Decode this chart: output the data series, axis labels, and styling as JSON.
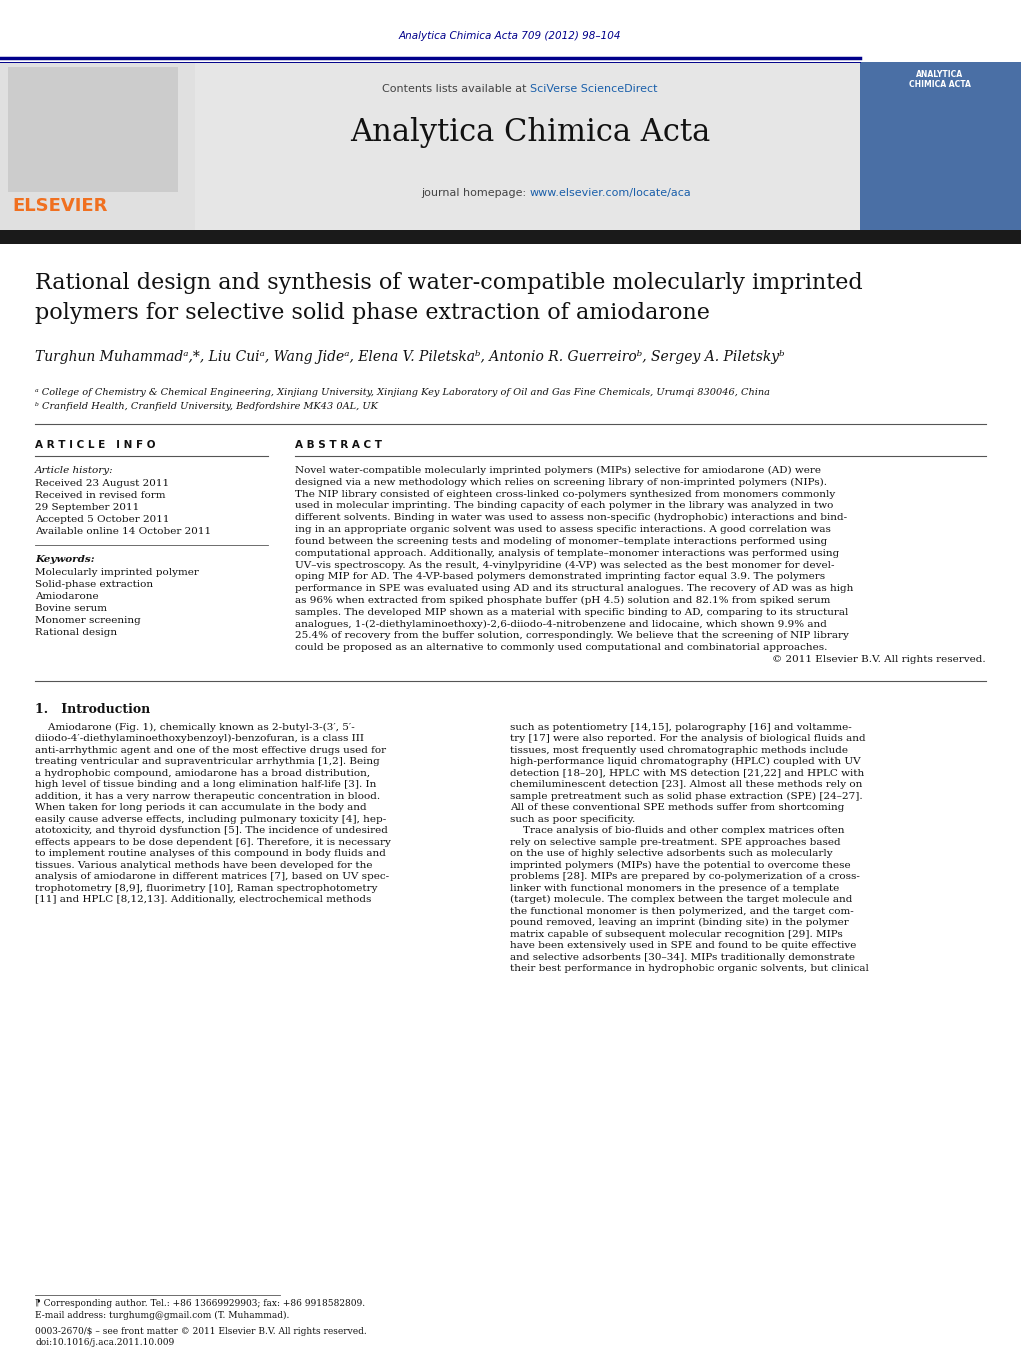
{
  "page_bg": "#ffffff",
  "journal_citation": "Analytica Chimica Acta 709 (2012) 98–104",
  "journal_citation_color": "#00008B",
  "journal_name": "Analytica Chimica Acta",
  "link_color": "#1a5faa",
  "elsevier_color": "#f07020",
  "dark_bar_color": "#1a1a1a",
  "header_bg": "#e8e8e8",
  "header_right_bg": "#4a6fa5",
  "article_title_line1": "Rational design and synthesis of water-compatible molecularly imprinted",
  "article_title_line2": "polymers for selective solid phase extraction of amiodarone",
  "authors_line": "Turghun Muhammadᵃ,*, Liu Cuiᵃ, Wang Jideᵃ, Elena V. Piletskaᵇ, Antonio R. Guerreiroᵇ, Sergey A. Piletskyᵇ",
  "affil_a": "ᵃ College of Chemistry & Chemical Engineering, Xinjiang University, Xinjiang Key Laboratory of Oil and Gas Fine Chemicals, Urumqi 830046, China",
  "affil_b": "ᵇ Cranfield Health, Cranfield University, Bedfordshire MK43 0AL, UK",
  "section_info": "A R T I C L E   I N F O",
  "section_abstract": "A B S T R A C T",
  "hist_label": "Article history:",
  "hist_items": [
    "Received 23 August 2011",
    "Received in revised form",
    "29 September 2011",
    "Accepted 5 October 2011",
    "Available online 14 October 2011"
  ],
  "kw_label": "Keywords:",
  "keywords": [
    "Molecularly imprinted polymer",
    "Solid-phase extraction",
    "Amiodarone",
    "Bovine serum",
    "Monomer screening",
    "Rational design"
  ],
  "abstract_lines": [
    "Novel water-compatible molecularly imprinted polymers (MIPs) selective for amiodarone (AD) were",
    "designed via a new methodology which relies on screening library of non-imprinted polymers (NIPs).",
    "The NIP library consisted of eighteen cross-linked co-polymers synthesized from monomers commonly",
    "used in molecular imprinting. The binding capacity of each polymer in the library was analyzed in two",
    "different solvents. Binding in water was used to assess non-specific (hydrophobic) interactions and bind-",
    "ing in an appropriate organic solvent was used to assess specific interactions. A good correlation was",
    "found between the screening tests and modeling of monomer–template interactions performed using",
    "computational approach. Additionally, analysis of template–monomer interactions was performed using",
    "UV–vis spectroscopy. As the result, 4-vinylpyridine (4-VP) was selected as the best monomer for devel-",
    "oping MIP for AD. The 4-VP-based polymers demonstrated imprinting factor equal 3.9. The polymers",
    "performance in SPE was evaluated using AD and its structural analogues. The recovery of AD was as high",
    "as 96% when extracted from spiked phosphate buffer (pH 4.5) solution and 82.1% from spiked serum",
    "samples. The developed MIP shown as a material with specific binding to AD, comparing to its structural",
    "analogues, 1-(2-diethylaminoethoxy)-2,6-diiodo-4-nitrobenzene and lidocaine, which shown 9.9% and",
    "25.4% of recovery from the buffer solution, correspondingly. We believe that the screening of NIP library",
    "could be proposed as an alternative to commonly used computational and combinatorial approaches.",
    "© 2011 Elsevier B.V. All rights reserved."
  ],
  "intro_heading": "1.   Introduction",
  "intro_col1": [
    "    Amiodarone (Fig. 1), chemically known as 2-butyl-3-(3′, 5′-",
    "diiodo-4′-diethylaminoethoxybenzoyl)-benzofuran, is a class III",
    "anti-arrhythmic agent and one of the most effective drugs used for",
    "treating ventricular and supraventricular arrhythmia [1,2]. Being",
    "a hydrophobic compound, amiodarone has a broad distribution,",
    "high level of tissue binding and a long elimination half-life [3]. In",
    "addition, it has a very narrow therapeutic concentration in blood.",
    "When taken for long periods it can accumulate in the body and",
    "easily cause adverse effects, including pulmonary toxicity [4], hep-",
    "atotoxicity, and thyroid dysfunction [5]. The incidence of undesired",
    "effects appears to be dose dependent [6]. Therefore, it is necessary",
    "to implement routine analyses of this compound in body fluids and",
    "tissues. Various analytical methods have been developed for the",
    "analysis of amiodarone in different matrices [7], based on UV spec-",
    "trophotometry [8,9], fluorimetry [10], Raman spectrophotometry",
    "[11] and HPLC [8,12,13]. Additionally, electrochemical methods"
  ],
  "intro_col2": [
    "such as potentiometry [14,15], polarography [16] and voltamme-",
    "try [17] were also reported. For the analysis of biological fluids and",
    "tissues, most frequently used chromatographic methods include",
    "high-performance liquid chromatography (HPLC) coupled with UV",
    "detection [18–20], HPLC with MS detection [21,22] and HPLC with",
    "chemiluminescent detection [23]. Almost all these methods rely on",
    "sample pretreatment such as solid phase extraction (SPE) [24–27].",
    "All of these conventional SPE methods suffer from shortcoming",
    "such as poor specificity.",
    "    Trace analysis of bio-fluids and other complex matrices often",
    "rely on selective sample pre-treatment. SPE approaches based",
    "on the use of highly selective adsorbents such as molecularly",
    "imprinted polymers (MIPs) have the potential to overcome these",
    "problems [28]. MIPs are prepared by co-polymerization of a cross-",
    "linker with functional monomers in the presence of a template",
    "(target) molecule. The complex between the target molecule and",
    "the functional monomer is then polymerized, and the target com-",
    "pound removed, leaving an imprint (binding site) in the polymer",
    "matrix capable of subsequent molecular recognition [29]. MIPs",
    "have been extensively used in SPE and found to be quite effective",
    "and selective adsorbents [30–34]. MIPs traditionally demonstrate",
    "their best performance in hydrophobic organic solvents, but clinical"
  ],
  "fn_star": "⁋ Corresponding author. Tel.: +86 13669929903; fax: +86 9918582809.",
  "fn_email": "E-mail address: turghumg@gmail.com (T. Muhammad).",
  "issn": "0003-2670/$ – see front matter © 2011 Elsevier B.V. All rights reserved.",
  "doi": "doi:10.1016/j.aca.2011.10.009"
}
